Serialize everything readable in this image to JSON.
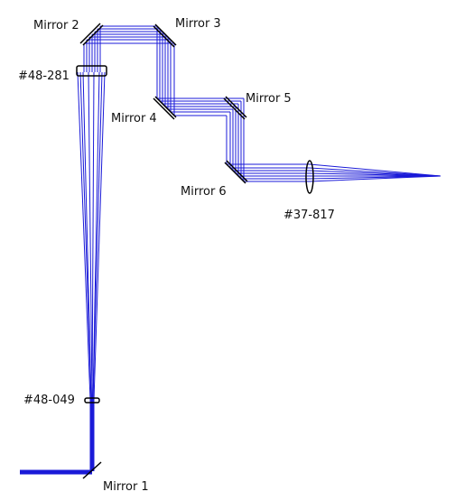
{
  "labels": {
    "mirror1": "Mirror 1",
    "mirror2": "Mirror 2",
    "mirror3": "Mirror 3",
    "mirror4": "Mirror 4",
    "mirror5": "Mirror 5",
    "mirror6": "Mirror 6",
    "lens_top": "#48-281",
    "lens_bottom": "#48-049",
    "lens_focus": "#37-817"
  },
  "colors": {
    "ray": "#1a1ad8",
    "component": "#000000",
    "label": "#111111",
    "background": "#ffffff"
  }
}
